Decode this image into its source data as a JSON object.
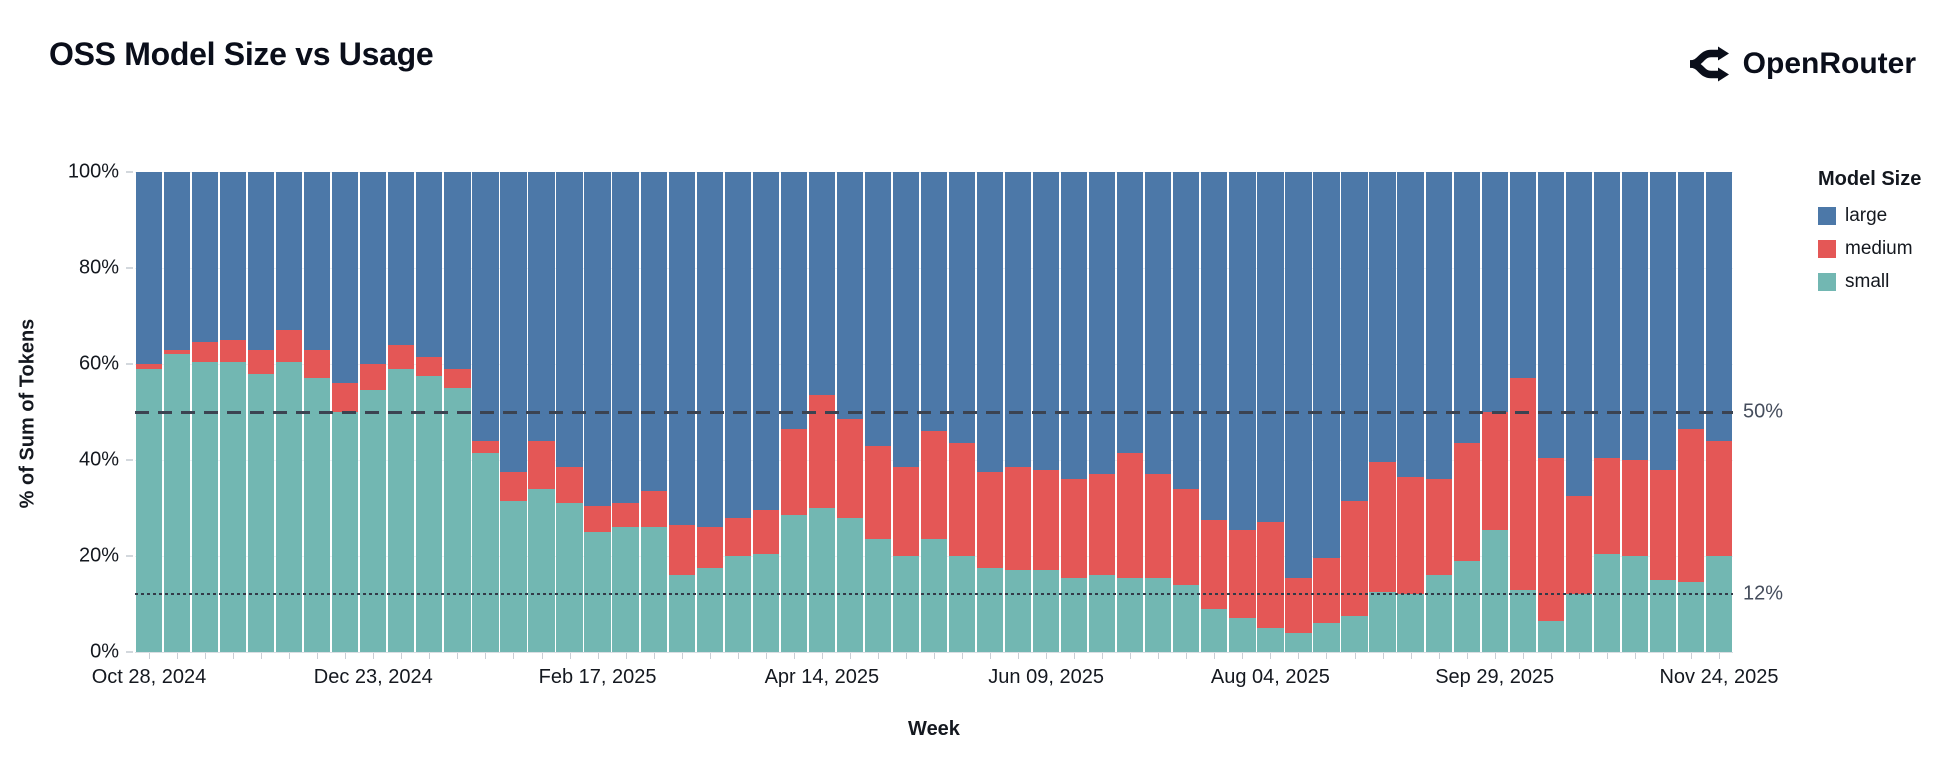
{
  "header": {
    "title": "OSS Model Size vs Usage",
    "brand": "OpenRouter"
  },
  "chart_data": {
    "type": "bar",
    "stacked": true,
    "normalized": "percent_of_total",
    "title": "OSS Model Size vs Usage",
    "xlabel": "Week",
    "ylabel": "% of Sum of Tokens",
    "ylim": [
      0,
      100
    ],
    "grid": true,
    "y_ticks": [
      "0%",
      "20%",
      "40%",
      "60%",
      "80%",
      "100%"
    ],
    "x_tick_labels": [
      "Oct 28, 2024",
      "Dec 23, 2024",
      "Feb 17, 2025",
      "Apr 14, 2025",
      "Jun 09, 2025",
      "Aug 04, 2025",
      "Sep 29, 2025",
      "Nov 24, 2025"
    ],
    "x_tick_every": 8,
    "categories": [
      "Oct 28, 2024",
      "Nov 04, 2024",
      "Nov 11, 2024",
      "Nov 18, 2024",
      "Nov 25, 2024",
      "Dec 02, 2024",
      "Dec 09, 2024",
      "Dec 16, 2024",
      "Dec 23, 2024",
      "Dec 30, 2024",
      "Jan 06, 2025",
      "Jan 13, 2025",
      "Jan 20, 2025",
      "Jan 27, 2025",
      "Feb 03, 2025",
      "Feb 10, 2025",
      "Feb 17, 2025",
      "Feb 24, 2025",
      "Mar 03, 2025",
      "Mar 10, 2025",
      "Mar 17, 2025",
      "Mar 24, 2025",
      "Mar 31, 2025",
      "Apr 07, 2025",
      "Apr 14, 2025",
      "Apr 21, 2025",
      "Apr 28, 2025",
      "May 05, 2025",
      "May 12, 2025",
      "May 19, 2025",
      "May 26, 2025",
      "Jun 02, 2025",
      "Jun 09, 2025",
      "Jun 16, 2025",
      "Jun 23, 2025",
      "Jun 30, 2025",
      "Jul 07, 2025",
      "Jul 14, 2025",
      "Jul 21, 2025",
      "Jul 28, 2025",
      "Aug 04, 2025",
      "Aug 11, 2025",
      "Aug 18, 2025",
      "Aug 25, 2025",
      "Sep 01, 2025",
      "Sep 08, 2025",
      "Sep 15, 2025",
      "Sep 22, 2025",
      "Sep 29, 2025",
      "Oct 06, 2025",
      "Oct 13, 2025",
      "Oct 20, 2025",
      "Oct 27, 2025",
      "Nov 03, 2025",
      "Nov 10, 2025",
      "Nov 17, 2025",
      "Nov 24, 2025"
    ],
    "stack_order_bottom_to_top": [
      "small",
      "medium",
      "large"
    ],
    "series": [
      {
        "name": "large",
        "color": "#4c78a8",
        "values": [
          40,
          37,
          35.5,
          35,
          37,
          33,
          37,
          44,
          40,
          36,
          38.5,
          41,
          56,
          62.5,
          56,
          61.5,
          69.5,
          69,
          66.5,
          73.5,
          74,
          72,
          70.5,
          53.5,
          46.5,
          51.5,
          57,
          61.5,
          54,
          56.5,
          62.5,
          61.5,
          62,
          64,
          63,
          58.5,
          63,
          66,
          72.5,
          74.5,
          73,
          84.5,
          80.5,
          68.5,
          60.5,
          63.5,
          64,
          56.5,
          50,
          43,
          59.5,
          67.5,
          59.5,
          60,
          62,
          53.5,
          56
        ]
      },
      {
        "name": "medium",
        "color": "#e45756",
        "values": [
          1,
          1,
          4,
          4.5,
          5,
          6.5,
          6,
          6,
          5.5,
          5,
          4,
          4,
          2.5,
          6,
          10,
          7.5,
          5.5,
          5,
          7.5,
          10.5,
          8.5,
          8,
          9,
          18,
          23.5,
          20.5,
          19.5,
          18.5,
          22.5,
          23.5,
          20,
          21.5,
          21,
          20.5,
          21,
          26,
          21.5,
          20,
          18.5,
          18.5,
          22,
          11.5,
          13.5,
          24,
          27,
          24.5,
          20,
          24.5,
          24.5,
          44,
          34,
          20.5,
          20,
          20,
          23,
          32,
          24
        ]
      },
      {
        "name": "small",
        "color": "#72b7b2",
        "values": [
          59,
          62,
          60.5,
          60.5,
          58,
          60.5,
          57,
          50,
          54.5,
          59,
          57.5,
          55,
          41.5,
          31.5,
          34,
          31,
          25,
          26,
          26,
          16,
          17.5,
          20,
          20.5,
          28.5,
          30,
          28,
          23.5,
          20,
          23.5,
          20,
          17.5,
          17,
          17,
          15.5,
          16,
          15.5,
          15.5,
          14,
          9,
          7,
          5,
          4,
          6,
          7.5,
          12.5,
          12,
          16,
          19,
          25.5,
          13,
          6.5,
          12,
          20.5,
          20,
          15,
          14.5,
          20
        ]
      }
    ],
    "legend": {
      "title": "Model Size",
      "position": "right",
      "entries": [
        "large",
        "medium",
        "small"
      ]
    },
    "reference_lines": [
      {
        "value": 50,
        "label": "50%",
        "style": "dashed"
      },
      {
        "value": 12,
        "label": "12%",
        "style": "dotted"
      }
    ]
  }
}
